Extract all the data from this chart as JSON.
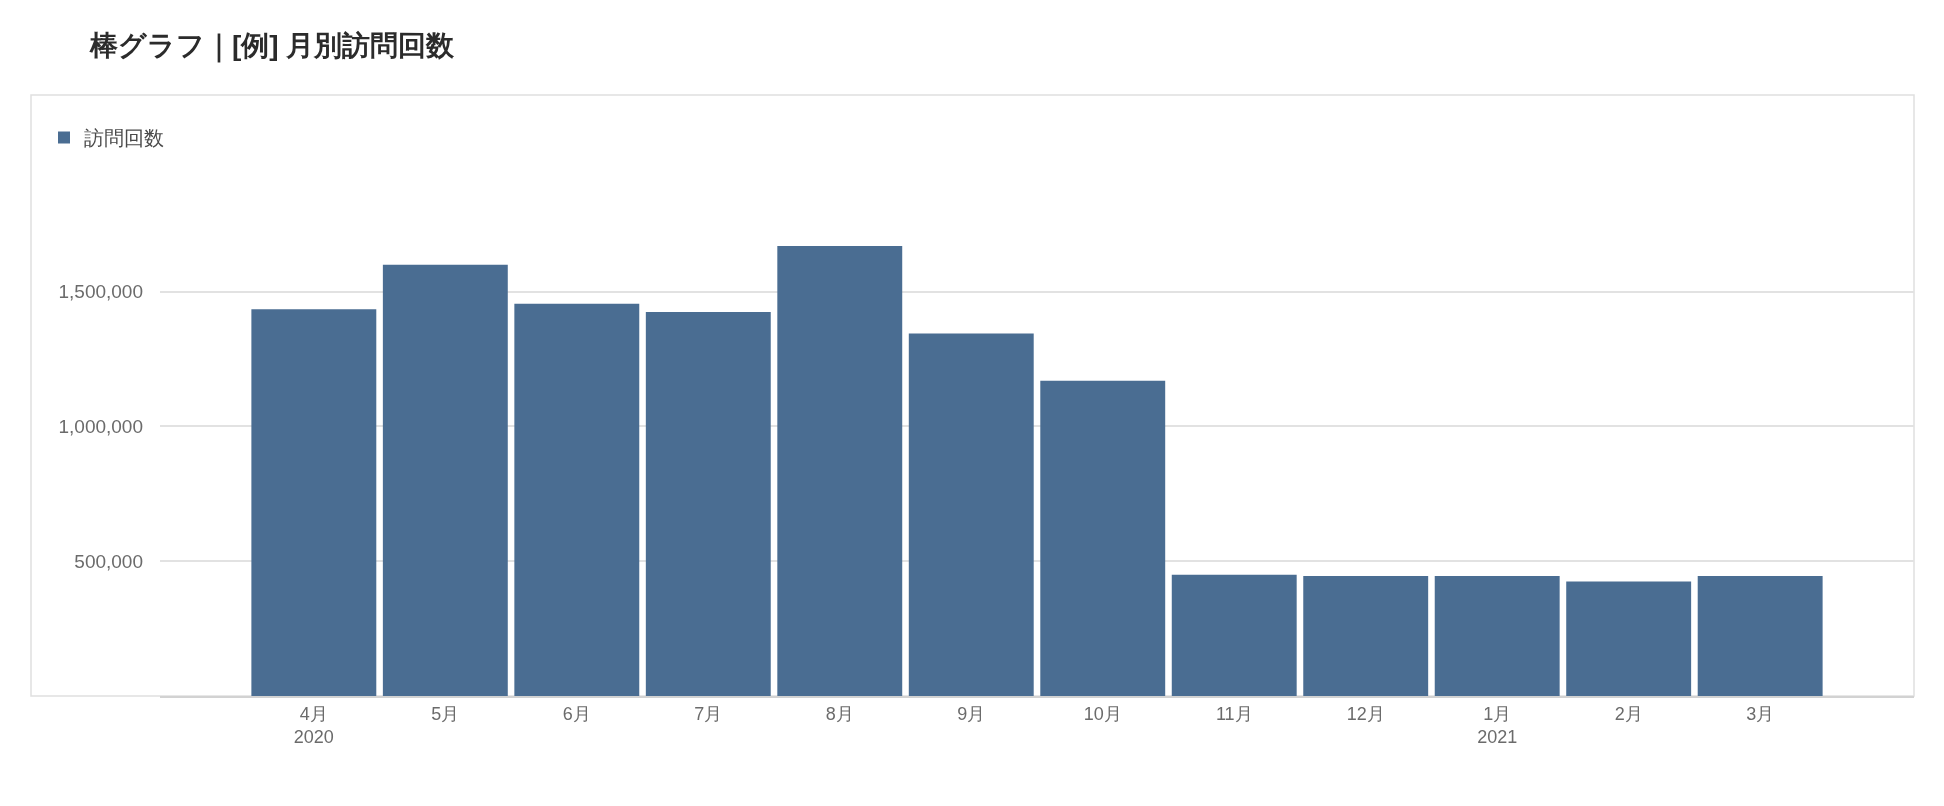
{
  "chart_data": {
    "type": "bar",
    "title": "棒グラフ｜[例] 月別訪問回数",
    "categories": [
      "4月\n2020",
      "5月",
      "6月",
      "7月",
      "8月",
      "9月",
      "10月",
      "11月",
      "12月",
      "1月\n2021",
      "2月",
      "3月"
    ],
    "series": [
      {
        "name": "訪問回数",
        "color": "#4a6d92",
        "values": [
          1435000,
          1600000,
          1455000,
          1425000,
          1670000,
          1345000,
          1170000,
          450000,
          445000,
          445000,
          425000,
          445000
        ]
      }
    ],
    "ylim": [
      0,
      2230000
    ],
    "yticks": [
      {
        "value": 500000,
        "label": "500,000"
      },
      {
        "value": 1000000,
        "label": "1,000,000"
      },
      {
        "value": 1500000,
        "label": "1,500,000"
      }
    ],
    "grid": "y",
    "legend": "top left"
  }
}
